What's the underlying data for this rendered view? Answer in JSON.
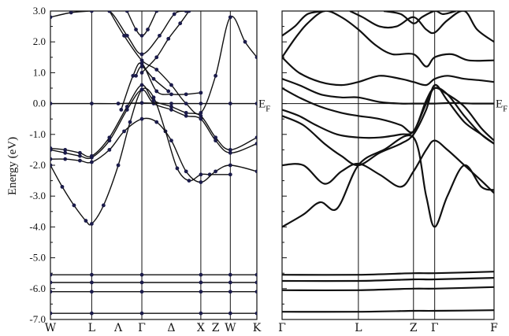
{
  "chart_data": [
    {
      "type": "line",
      "ylabel": "Energy (eV)",
      "ylim": [
        -7.0,
        3.0
      ],
      "yticks": [
        "3.0",
        "2.0",
        "1.0",
        "0.0",
        "-1.0",
        "-2.0",
        "-3.0",
        "-4.0",
        "-5.0",
        "-6.0",
        "-7.0"
      ],
      "xlim": [
        0,
        7.0
      ],
      "kpoints": [
        {
          "label": "W",
          "x": 0.0
        },
        {
          "label": "L",
          "x": 1.4
        },
        {
          "label": "Λ",
          "x": 2.3
        },
        {
          "label": "Γ",
          "x": 3.1
        },
        {
          "label": "Δ",
          "x": 4.1
        },
        {
          "label": "X",
          "x": 5.1
        },
        {
          "label": "Z",
          "x": 5.6
        },
        {
          "label": "W",
          "x": 6.1
        },
        {
          "label": "K",
          "x": 7.0
        }
      ],
      "kpoint_lines": [
        1.4,
        3.1,
        5.1,
        6.1
      ],
      "fermi_label": "E",
      "fermi_sub": "F",
      "bands": [
        {
          "x": [
            0,
            1.4,
            3.1,
            5.1,
            6.1,
            7.0
          ],
          "y": [
            -6.8,
            -6.8,
            -6.8,
            -6.8,
            -6.8,
            -6.8
          ]
        },
        {
          "x": [
            0,
            1.4,
            3.1,
            5.1,
            6.1,
            7.0
          ],
          "y": [
            -6.1,
            -6.1,
            -6.1,
            -6.1,
            -6.1,
            -6.1
          ]
        },
        {
          "x": [
            0,
            1.4,
            3.1,
            5.1,
            6.1,
            7.0
          ],
          "y": [
            -5.8,
            -5.8,
            -5.8,
            -5.8,
            -5.8,
            -5.8
          ]
        },
        {
          "x": [
            0,
            1.4,
            3.1,
            5.1,
            6.1,
            7.0
          ],
          "y": [
            -5.55,
            -5.55,
            -5.55,
            -5.55,
            -5.55,
            -5.55
          ]
        },
        {
          "x": [
            0,
            0.4,
            0.8,
            1.2,
            1.4,
            1.8,
            2.3,
            2.7,
            3.1,
            3.5,
            3.9,
            4.3,
            4.7,
            5.1,
            5.4,
            6.1
          ],
          "y": [
            -2.0,
            -2.7,
            -3.3,
            -3.8,
            -3.9,
            -3.3,
            -2.0,
            -0.6,
            0.45,
            0.2,
            -0.9,
            -2.1,
            -2.5,
            -2.3,
            -2.3,
            -2.3
          ]
        },
        {
          "x": [
            0,
            0.5,
            1.0,
            1.4,
            2.0,
            2.5,
            3.1,
            3.6,
            4.1,
            4.6,
            5.1,
            5.6,
            6.1,
            7.0
          ],
          "y": [
            -1.8,
            -1.8,
            -1.85,
            -1.9,
            -1.5,
            -0.9,
            -0.5,
            -0.6,
            -1.2,
            -2.2,
            -2.55,
            -2.2,
            -2.0,
            -2.2
          ]
        },
        {
          "x": [
            0,
            0.5,
            1.0,
            1.4,
            2.0,
            2.6,
            3.1,
            3.5,
            4.1,
            4.6,
            5.1,
            5.6,
            6.1,
            7.0
          ],
          "y": [
            -1.5,
            -1.6,
            -1.7,
            -1.75,
            -1.2,
            -0.2,
            0.45,
            0.0,
            -0.2,
            -0.4,
            -0.5,
            -1.2,
            -1.6,
            -1.3
          ]
        },
        {
          "x": [
            0,
            0.5,
            1.0,
            1.4,
            2.0,
            2.6,
            3.1,
            3.5,
            4.1,
            4.6,
            5.1,
            5.6,
            6.1,
            7.0
          ],
          "y": [
            -1.45,
            -1.5,
            -1.6,
            -1.7,
            -1.1,
            -0.1,
            0.6,
            0.1,
            -0.1,
            -0.3,
            -0.4,
            -1.1,
            -1.5,
            -1.1
          ]
        },
        {
          "x": [
            0,
            1.4,
            2.3,
            3.1,
            4.1,
            5.1,
            6.1,
            7.0
          ],
          "y": [
            0.0,
            0.0,
            0.0,
            0.02,
            0.0,
            0.0,
            0.0,
            0.0
          ]
        },
        {
          "x": [
            2.4,
            2.8,
            3.1,
            3.6,
            4.1,
            4.6,
            5.1
          ],
          "y": [
            -0.2,
            0.9,
            1.3,
            0.4,
            0.3,
            0.3,
            0.35
          ]
        },
        {
          "x": [
            2.0,
            2.5,
            3.1,
            3.6,
            4.1,
            4.6,
            5.1,
            5.6,
            6.1,
            6.6,
            7.0
          ],
          "y": [
            3.0,
            2.2,
            1.4,
            1.1,
            0.6,
            0.0,
            -0.3,
            0.9,
            2.8,
            2.0,
            1.5
          ]
        },
        {
          "x": [
            0,
            0.7,
            1.4,
            2.0,
            2.6,
            3.1,
            3.7,
            4.2,
            4.6
          ],
          "y": [
            2.8,
            2.95,
            3.0,
            3.0,
            2.2,
            1.6,
            2.2,
            2.9,
            3.0
          ]
        },
        {
          "x": [
            2.6,
            2.9,
            3.1,
            3.3,
            3.6
          ],
          "y": [
            3.0,
            2.4,
            2.2,
            2.4,
            3.0
          ]
        },
        {
          "x": [
            3.1,
            3.6,
            4.0,
            4.4,
            4.7
          ],
          "y": [
            1.0,
            1.5,
            2.1,
            2.6,
            3.0
          ]
        },
        {
          "x": [
            2.9,
            3.1,
            3.5,
            4.0
          ],
          "y": [
            0.9,
            1.2,
            0.8,
            0.4
          ]
        }
      ]
    },
    {
      "type": "line",
      "ylim": [
        -7.0,
        3.0
      ],
      "xlim": [
        0,
        5.0
      ],
      "kpoints": [
        {
          "label": "Γ",
          "x": 0.0
        },
        {
          "label": "L",
          "x": 1.8
        },
        {
          "label": "Z",
          "x": 3.1
        },
        {
          "label": "Γ",
          "x": 3.6
        },
        {
          "label": "F",
          "x": 5.0
        }
      ],
      "kpoint_lines": [
        1.8,
        3.1,
        3.6
      ],
      "fermi_label": "E",
      "fermi_sub": "F",
      "bands": [
        {
          "x": [
            0,
            1.8,
            3.1,
            3.6,
            5.0
          ],
          "y": [
            -6.75,
            -6.75,
            -6.72,
            -6.72,
            -6.7
          ]
        },
        {
          "x": [
            0,
            1.8,
            3.1,
            3.6,
            5.0
          ],
          "y": [
            -6.05,
            -6.05,
            -6.0,
            -6.0,
            -5.95
          ]
        },
        {
          "x": [
            0,
            1.8,
            3.1,
            3.6,
            5.0
          ],
          "y": [
            -5.75,
            -5.75,
            -5.7,
            -5.7,
            -5.65
          ]
        },
        {
          "x": [
            0,
            1.8,
            3.1,
            3.6,
            5.0
          ],
          "y": [
            -5.55,
            -5.55,
            -5.5,
            -5.5,
            -5.45
          ]
        },
        {
          "x": [
            0,
            0.5,
            0.9,
            1.3,
            1.8,
            2.4,
            3.1,
            3.4,
            3.6,
            3.9,
            4.3,
            4.7,
            5.0
          ],
          "y": [
            -4.0,
            -3.6,
            -3.2,
            -3.4,
            -2.0,
            -1.5,
            -1.1,
            -3.0,
            -4.0,
            -3.0,
            -2.0,
            -2.7,
            -2.8
          ]
        },
        {
          "x": [
            0,
            0.5,
            1.0,
            1.4,
            1.8,
            2.3,
            2.8,
            3.1,
            3.4,
            3.6,
            3.9,
            4.3,
            4.7,
            5.0
          ],
          "y": [
            -2.0,
            -2.0,
            -2.6,
            -2.2,
            -1.95,
            -2.3,
            -2.7,
            -2.2,
            -1.5,
            -1.2,
            -1.5,
            -2.0,
            -2.5,
            -2.9
          ]
        },
        {
          "x": [
            0,
            0.5,
            1.0,
            1.4,
            1.8,
            2.3,
            2.8,
            3.1,
            3.4,
            3.6,
            3.9,
            4.3,
            4.7,
            5.0
          ],
          "y": [
            -0.4,
            -0.7,
            -1.3,
            -1.7,
            -2.0,
            -1.6,
            -1.3,
            -1.0,
            -0.2,
            0.6,
            0.1,
            -0.6,
            -1.0,
            -1.3
          ]
        },
        {
          "x": [
            0,
            0.4,
            0.8,
            1.3,
            1.8,
            2.3,
            2.8,
            3.1,
            3.4,
            3.6,
            3.9,
            4.3,
            4.7,
            5.0
          ],
          "y": [
            -0.2,
            -0.4,
            -0.7,
            -1.0,
            -1.1,
            -1.1,
            -1.0,
            -0.9,
            0.0,
            0.5,
            0.3,
            -0.4,
            -1.0,
            -1.3
          ]
        },
        {
          "x": [
            0,
            0.4,
            0.9,
            1.4,
            1.8,
            2.3,
            2.8,
            3.1,
            3.4,
            3.6,
            3.9,
            4.3,
            4.7,
            5.0
          ],
          "y": [
            0.5,
            0.2,
            -0.1,
            -0.3,
            -0.4,
            -0.5,
            -0.7,
            -0.9,
            0.1,
            0.5,
            0.3,
            -0.1,
            -0.8,
            -1.2
          ]
        },
        {
          "x": [
            0,
            0.4,
            0.9,
            1.4,
            1.8,
            2.3,
            2.8,
            3.1,
            3.6,
            4.0,
            4.5,
            5.0
          ],
          "y": [
            0.8,
            0.6,
            0.3,
            0.2,
            0.2,
            0.05,
            0.0,
            0.0,
            0.0,
            0.02,
            0.0,
            0.0
          ]
        },
        {
          "x": [
            0,
            0.4,
            0.9,
            1.4,
            1.8,
            2.3,
            2.8,
            3.1,
            3.4,
            3.6,
            3.9,
            4.3,
            4.7,
            5.0
          ],
          "y": [
            1.5,
            1.0,
            0.7,
            0.6,
            0.7,
            0.9,
            0.8,
            0.7,
            0.6,
            0.8,
            0.9,
            0.8,
            0.75,
            0.7
          ]
        },
        {
          "x": [
            0,
            0.3,
            0.6,
            1.0,
            1.4,
            1.8,
            2.2,
            2.6,
            3.1,
            3.4,
            3.6,
            4.0,
            4.4,
            5.0
          ],
          "y": [
            1.5,
            2.1,
            2.6,
            3.0,
            2.8,
            2.4,
            1.9,
            1.6,
            1.6,
            1.2,
            1.5,
            1.6,
            1.4,
            1.4
          ]
        },
        {
          "x": [
            0,
            0.3,
            0.6,
            1.0
          ],
          "y": [
            2.2,
            2.5,
            2.9,
            3.0
          ]
        },
        {
          "x": [
            1.6,
            1.9,
            2.3,
            2.7,
            3.1,
            3.4,
            3.6,
            3.9,
            4.3,
            4.6,
            5.0
          ],
          "y": [
            3.0,
            2.8,
            2.5,
            2.5,
            2.8,
            2.4,
            2.3,
            2.7,
            3.0,
            2.4,
            2.0
          ]
        },
        {
          "x": [
            2.4,
            2.8,
            3.1,
            3.3,
            3.6,
            3.8,
            4.1
          ],
          "y": [
            3.0,
            2.9,
            2.6,
            2.8,
            3.0,
            2.9,
            3.0
          ]
        }
      ]
    }
  ]
}
